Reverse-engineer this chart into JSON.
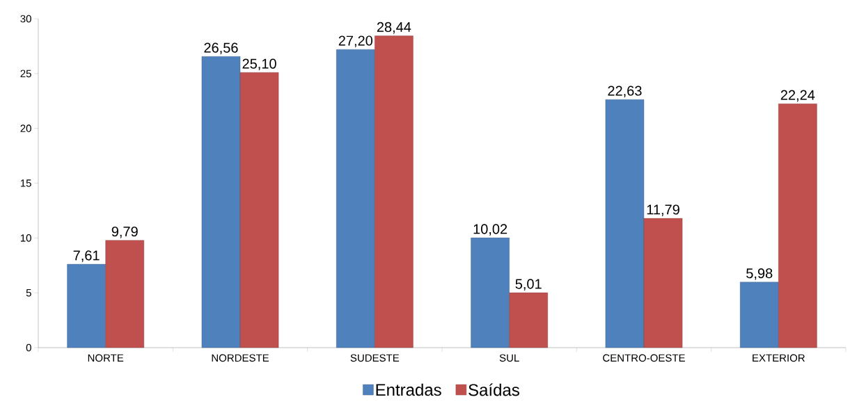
{
  "chart_data": {
    "type": "bar",
    "categories": [
      "NORTE",
      "NORDESTE",
      "SUDESTE",
      "SUL",
      "CENTRO-OESTE",
      "EXTERIOR"
    ],
    "series": [
      {
        "name": "Entradas",
        "color": "#4f81bd",
        "values": [
          7.61,
          26.56,
          27.2,
          10.02,
          22.63,
          5.98
        ],
        "value_labels": [
          "7,61",
          "26,56",
          "27,20",
          "10,02",
          "22,63",
          "5,98"
        ]
      },
      {
        "name": "Saídas",
        "color": "#c0504d",
        "values": [
          9.79,
          25.1,
          28.44,
          5.01,
          11.79,
          22.24
        ],
        "value_labels": [
          "9,79",
          "25,10",
          "28,44",
          "5,01",
          "11,79",
          "22,24"
        ]
      }
    ],
    "ylim": [
      0,
      30
    ],
    "yticks": [
      0,
      5,
      10,
      15,
      20,
      25,
      30
    ],
    "grid": false,
    "legend": "bottom"
  }
}
